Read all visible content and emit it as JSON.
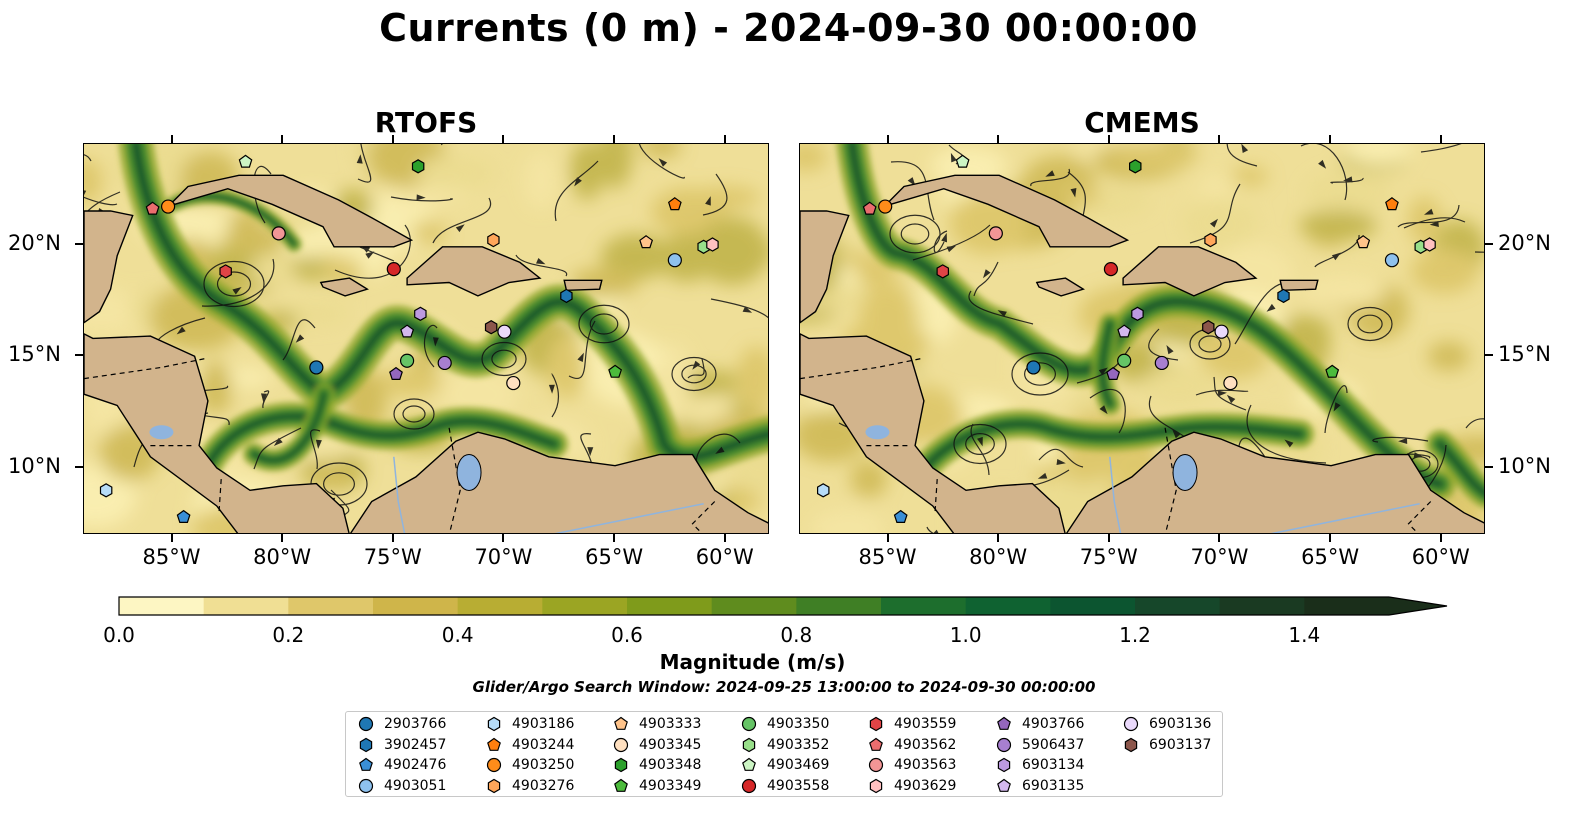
{
  "title": "Currents (0 m) - 2024-09-30 00:00:00",
  "panels": [
    {
      "title": "RTOFS"
    },
    {
      "title": "CMEMS"
    }
  ],
  "axes": {
    "lon_ticks": [
      "85°W",
      "80°W",
      "75°W",
      "70°W",
      "65°W",
      "60°W"
    ],
    "lat_ticks": [
      "20°N",
      "15°N",
      "10°N"
    ]
  },
  "colorbar": {
    "label": "Magnitude (m/s)",
    "ticks": [
      "0.0",
      "0.2",
      "0.4",
      "0.6",
      "0.8",
      "1.0",
      "1.2",
      "1.4"
    ],
    "range": [
      0.0,
      1.5
    ],
    "extend": "max",
    "colors": [
      "#fdf6c3",
      "#f0df94",
      "#dfc76a",
      "#cfb54a",
      "#b8ad33",
      "#9ba523",
      "#7f9b1b",
      "#5f8c1e",
      "#3f7f25",
      "#1d6e2d",
      "#0f6231",
      "#0c5530",
      "#16472a",
      "#1a3a22",
      "#1a2e1a"
    ]
  },
  "subtitle": "Glider/Argo Search Window: 2024-09-25 13:00:00 to 2024-09-30 00:00:00",
  "legend": [
    {
      "label": "2903766",
      "marker": "circle",
      "color": "#1f77b4"
    },
    {
      "label": "3902457",
      "marker": "hexagon",
      "color": "#1f77b4"
    },
    {
      "label": "4902476",
      "marker": "pentagon",
      "color": "#3a8fd6"
    },
    {
      "label": "4903051",
      "marker": "circle",
      "color": "#8ec1ee"
    },
    {
      "label": "4903186",
      "marker": "hexagon",
      "color": "#b6dcf8"
    },
    {
      "label": "4903244",
      "marker": "pentagon",
      "color": "#ff7f0e"
    },
    {
      "label": "4903250",
      "marker": "circle",
      "color": "#ff8c1a"
    },
    {
      "label": "4903276",
      "marker": "hexagon",
      "color": "#ffa65a"
    },
    {
      "label": "4903333",
      "marker": "pentagon",
      "color": "#ffc38a"
    },
    {
      "label": "4903345",
      "marker": "circle",
      "color": "#ffe0c0"
    },
    {
      "label": "4903348",
      "marker": "hexagon",
      "color": "#2ca02c"
    },
    {
      "label": "4903349",
      "marker": "pentagon",
      "color": "#4cbb3c"
    },
    {
      "label": "4903350",
      "marker": "circle",
      "color": "#66c466"
    },
    {
      "label": "4903352",
      "marker": "hexagon",
      "color": "#98df8a"
    },
    {
      "label": "4903469",
      "marker": "pentagon",
      "color": "#ccf5c4"
    },
    {
      "label": "4903558",
      "marker": "circle",
      "color": "#d62728"
    },
    {
      "label": "4903559",
      "marker": "hexagon",
      "color": "#e04446"
    },
    {
      "label": "4903562",
      "marker": "pentagon",
      "color": "#ea6d6e"
    },
    {
      "label": "4903563",
      "marker": "circle",
      "color": "#f29696"
    },
    {
      "label": "4903629",
      "marker": "hexagon",
      "color": "#ffc0c0"
    },
    {
      "label": "4903766",
      "marker": "pentagon",
      "color": "#9467bd"
    },
    {
      "label": "5906437",
      "marker": "circle",
      "color": "#a87fd0"
    },
    {
      "label": "6903134",
      "marker": "hexagon",
      "color": "#bd9ae0"
    },
    {
      "label": "6903135",
      "marker": "pentagon",
      "color": "#d4b8ee"
    },
    {
      "label": "6903136",
      "marker": "circle",
      "color": "#ead9fb"
    },
    {
      "label": "6903137",
      "marker": "hexagon",
      "color": "#8c564b"
    }
  ],
  "map_extent": {
    "lon": [
      -89,
      -58
    ],
    "lat": [
      7,
      24.5
    ]
  },
  "floats": [
    {
      "id": "2903766",
      "lon": -78.5,
      "lat": 14.5
    },
    {
      "id": "4902476",
      "lon": -84.5,
      "lat": 7.8
    },
    {
      "id": "4903051",
      "lon": -62.3,
      "lat": 19.3
    },
    {
      "id": "4903186",
      "lon": -88.0,
      "lat": 9.0
    },
    {
      "id": "3902457",
      "lon": -67.2,
      "lat": 17.7
    },
    {
      "id": "4903244",
      "lon": -62.3,
      "lat": 21.8
    },
    {
      "id": "4903250",
      "lon": -85.2,
      "lat": 21.7
    },
    {
      "id": "4903276",
      "lon": -70.5,
      "lat": 20.2
    },
    {
      "id": "4903333",
      "lon": -63.6,
      "lat": 20.1
    },
    {
      "id": "4903345",
      "lon": -69.6,
      "lat": 13.8
    },
    {
      "id": "4903348",
      "lon": -73.9,
      "lat": 23.5
    },
    {
      "id": "4903349",
      "lon": -65.0,
      "lat": 14.3
    },
    {
      "id": "4903350",
      "lon": -74.4,
      "lat": 14.8
    },
    {
      "id": "4903352",
      "lon": -61.0,
      "lat": 19.9
    },
    {
      "id": "4903469",
      "lon": -81.7,
      "lat": 23.7
    },
    {
      "id": "4903558",
      "lon": -75.0,
      "lat": 18.9
    },
    {
      "id": "4903559",
      "lon": -82.6,
      "lat": 18.8
    },
    {
      "id": "4903562",
      "lon": -85.9,
      "lat": 21.6
    },
    {
      "id": "4903563",
      "lon": -80.2,
      "lat": 20.5
    },
    {
      "id": "4903629",
      "lon": -60.6,
      "lat": 20.0
    },
    {
      "id": "4903766",
      "lon": -74.9,
      "lat": 14.2
    },
    {
      "id": "5906437",
      "lon": -72.7,
      "lat": 14.7
    },
    {
      "id": "6903134",
      "lon": -73.8,
      "lat": 16.9
    },
    {
      "id": "6903135",
      "lon": -74.4,
      "lat": 16.1
    },
    {
      "id": "6903136",
      "lon": -70.0,
      "lat": 16.1
    },
    {
      "id": "6903137",
      "lon": -70.6,
      "lat": 16.3
    }
  ]
}
